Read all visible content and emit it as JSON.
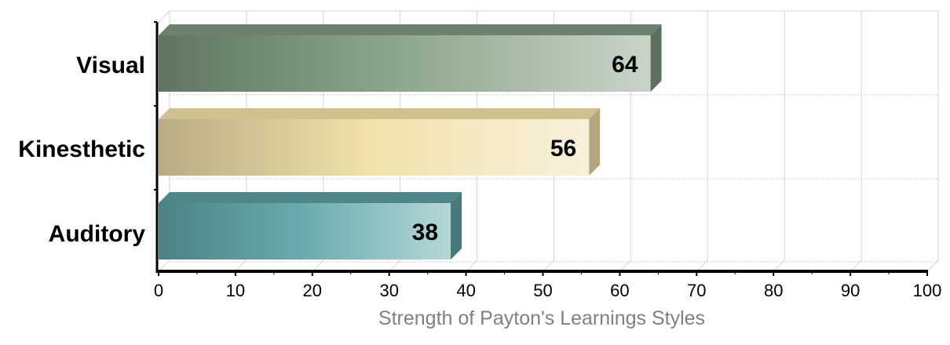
{
  "chart_data": {
    "type": "bar",
    "orientation": "horizontal",
    "style": "3d",
    "categories": [
      "Visual",
      "Kinesthetic",
      "Auditory"
    ],
    "values": [
      64,
      56,
      38
    ],
    "value_labels": [
      "64",
      "56",
      "38"
    ],
    "title": "",
    "xlabel": "Strength of Payton's Learnings Styles",
    "ylabel": "",
    "xlim": [
      0,
      100
    ],
    "xticks": [
      "0",
      "10",
      "20",
      "30",
      "40",
      "50",
      "60",
      "70",
      "80",
      "90",
      "100"
    ],
    "grid": true,
    "legend": "none",
    "colors": [
      {
        "dark": "#5f7560",
        "mid": "#8fa88d",
        "light": "#c9d4c8",
        "top": "#6d826c",
        "side": "#5d705d"
      },
      {
        "dark": "#b8ac82",
        "mid": "#f2e3ac",
        "light": "#f7f0da",
        "top": "#cfc090",
        "side": "#b3a678"
      },
      {
        "dark": "#4c8283",
        "mid": "#6aacae",
        "light": "#b6d7d8",
        "top": "#4f8687",
        "side": "#477a7b"
      }
    ]
  }
}
